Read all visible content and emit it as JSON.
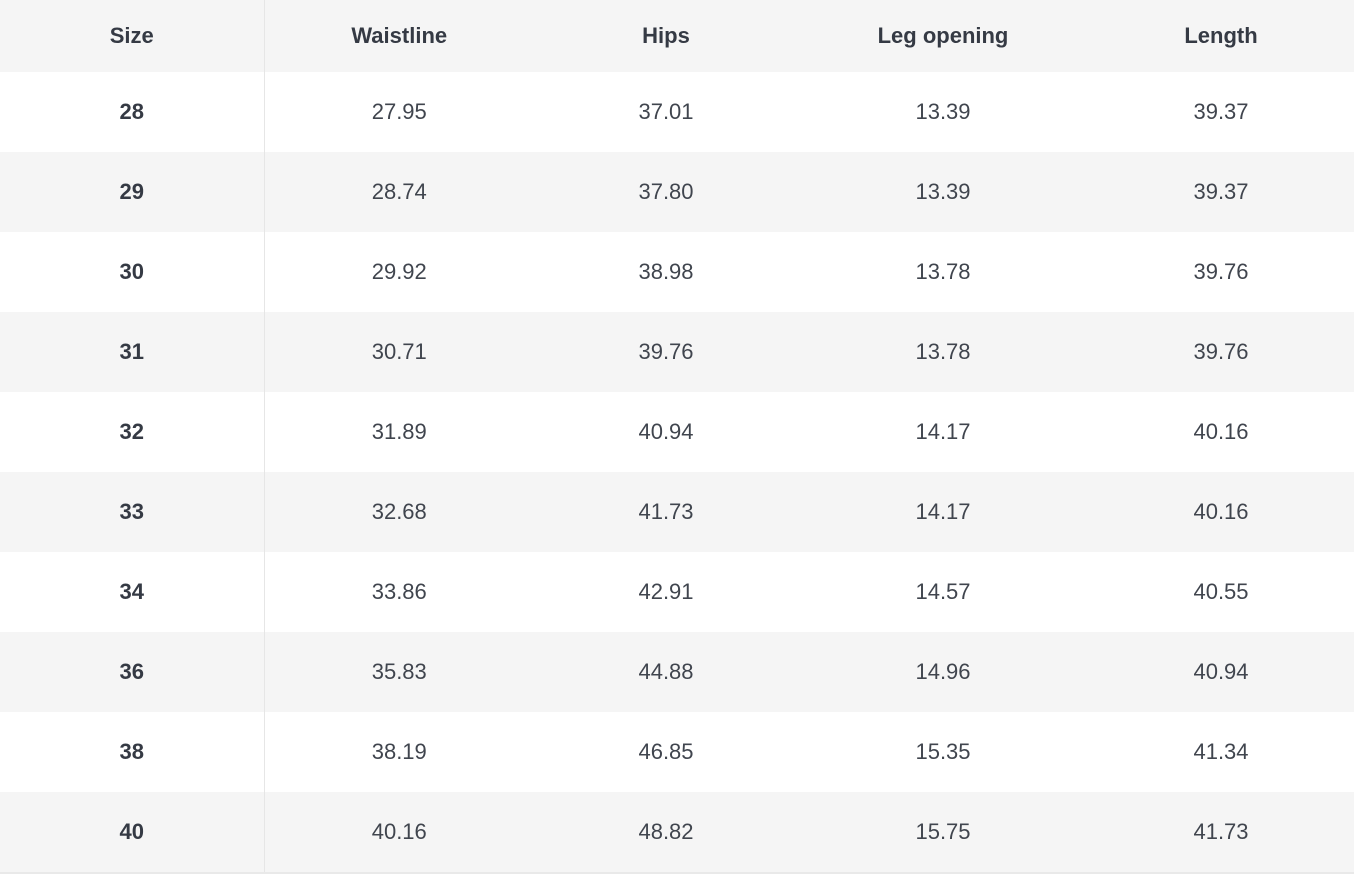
{
  "table": {
    "headers": [
      "Size",
      "Waistline",
      "Hips",
      "Leg opening",
      "Length"
    ],
    "rows": [
      [
        "28",
        "27.95",
        "37.01",
        "13.39",
        "39.37"
      ],
      [
        "29",
        "28.74",
        "37.80",
        "13.39",
        "39.37"
      ],
      [
        "30",
        "29.92",
        "38.98",
        "13.78",
        "39.76"
      ],
      [
        "31",
        "30.71",
        "39.76",
        "13.78",
        "39.76"
      ],
      [
        "32",
        "31.89",
        "40.94",
        "14.17",
        "40.16"
      ],
      [
        "33",
        "32.68",
        "41.73",
        "14.17",
        "40.16"
      ],
      [
        "34",
        "33.86",
        "42.91",
        "14.57",
        "40.55"
      ],
      [
        "36",
        "35.83",
        "44.88",
        "14.96",
        "40.94"
      ],
      [
        "38",
        "38.19",
        "46.85",
        "15.35",
        "41.34"
      ],
      [
        "40",
        "40.16",
        "48.82",
        "15.75",
        "41.73"
      ]
    ]
  },
  "colors": {
    "header_bg": "#f5f5f5",
    "row_alt_bg": "#f5f5f5",
    "row_bg": "#ffffff",
    "text": "#353a44",
    "divider": "#e6e6e6"
  }
}
